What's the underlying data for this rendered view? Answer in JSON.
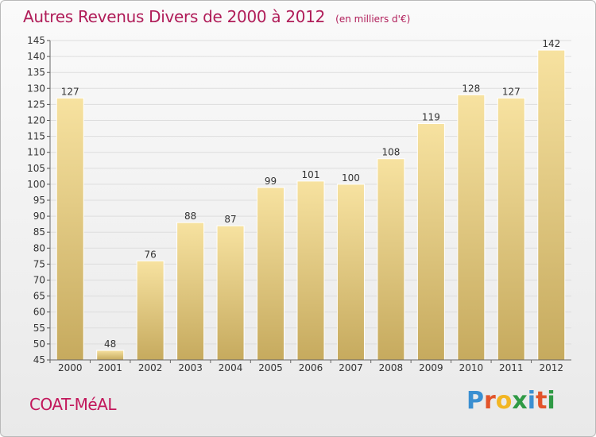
{
  "header": {
    "title": "Autres Revenus Divers de 2000 à 2012",
    "unit": "(en milliers d'€)"
  },
  "footer": {
    "place": "COAT-MéAL",
    "logo_text": "Proxiti",
    "logo_letters": [
      {
        "ch": "P",
        "color": "#3a8fd1"
      },
      {
        "ch": "r",
        "color": "#e2542a"
      },
      {
        "ch": "o",
        "color": "#f2b623"
      },
      {
        "ch": "x",
        "color": "#2f9a45"
      },
      {
        "ch": "i",
        "color": "#3a8fd1"
      },
      {
        "ch": "t",
        "color": "#e2542a"
      },
      {
        "ch": "i",
        "color": "#2f9a45"
      }
    ]
  },
  "colors": {
    "title": "#b01d59",
    "bar_light": "#f7e2a0",
    "bar_dark": "#c6aa5e",
    "axis_text": "#333333",
    "grid": "#dddddd"
  },
  "chart_data": {
    "type": "bar",
    "title": "Autres Revenus Divers de 2000 à 2012",
    "subtitle": "(en milliers d'€)",
    "categories": [
      "2000",
      "2001",
      "2002",
      "2003",
      "2004",
      "2005",
      "2006",
      "2007",
      "2008",
      "2009",
      "2010",
      "2011",
      "2012"
    ],
    "values": [
      127,
      48,
      76,
      88,
      87,
      99,
      101,
      100,
      108,
      119,
      128,
      127,
      142
    ],
    "ylim": [
      45,
      145
    ],
    "yticks": [
      45,
      50,
      55,
      60,
      65,
      70,
      75,
      80,
      85,
      90,
      95,
      100,
      105,
      110,
      115,
      120,
      125,
      130,
      135,
      140,
      145
    ],
    "grid": true,
    "xlabel": "",
    "ylabel": ""
  }
}
